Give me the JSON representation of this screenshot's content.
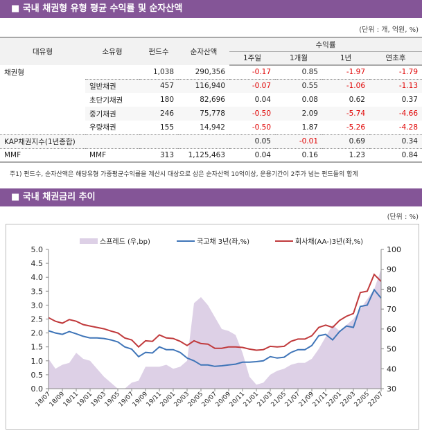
{
  "section1": {
    "title": "■ 국내 채권형 유형 평균 수익률 및 순자산액",
    "unit": "(단위 : 개, 억원, %)",
    "headers": {
      "major": "대유형",
      "minor": "소유형",
      "funds": "펀드수",
      "assets": "순자산액",
      "returns": "수익률",
      "w1": "1주일",
      "m1": "1개월",
      "y1": "1년",
      "ytd": "연초후"
    },
    "rows": [
      {
        "major": "채권형",
        "minor": "",
        "funds": "1,038",
        "assets": "290,356",
        "w1": "-0.17",
        "m1": "0.85",
        "y1": "-1.97",
        "ytd": "-1.79"
      },
      {
        "major": "",
        "minor": "일반채권",
        "funds": "457",
        "assets": "116,940",
        "w1": "-0.07",
        "m1": "0.55",
        "y1": "-1.06",
        "ytd": "-1.13"
      },
      {
        "major": "",
        "minor": "초단기채권",
        "funds": "180",
        "assets": "82,696",
        "w1": "0.04",
        "m1": "0.08",
        "y1": "0.62",
        "ytd": "0.37"
      },
      {
        "major": "",
        "minor": "중기채권",
        "funds": "246",
        "assets": "75,778",
        "w1": "-0.50",
        "m1": "2.09",
        "y1": "-5.74",
        "ytd": "-4.66"
      },
      {
        "major": "",
        "minor": "우량채권",
        "funds": "155",
        "assets": "14,942",
        "w1": "-0.50",
        "m1": "1.87",
        "y1": "-5.26",
        "ytd": "-4.28"
      },
      {
        "major": "KAP채권지수(1년종합)",
        "minor": "",
        "funds": "",
        "assets": "",
        "w1": "0.05",
        "m1": "-0.01",
        "y1": "0.69",
        "ytd": "0.34"
      },
      {
        "major": "MMF",
        "minor": "MMF",
        "funds": "313",
        "assets": "1,125,463",
        "w1": "0.04",
        "m1": "0.16",
        "y1": "1.23",
        "ytd": "0.84"
      }
    ],
    "note": "주1) 펀드수, 순자산액은 해당유형 가중평균수익률을 계산시 대상으로 삼은 순자산액 10억이상, 운용기간이 2주가 넘는 펀드들의 합계"
  },
  "section2": {
    "title": "■ 국내 채권금리 추이",
    "unit": "(단위 : %)"
  },
  "chart_data": {
    "type": "line",
    "x": [
      "18/07",
      "18/08",
      "18/09",
      "18/10",
      "18/11",
      "18/12",
      "19/01",
      "19/02",
      "19/03",
      "19/04",
      "19/05",
      "19/06",
      "19/07",
      "19/08",
      "19/09",
      "19/10",
      "19/11",
      "19/12",
      "20/01",
      "20/02",
      "20/03",
      "20/04",
      "20/05",
      "20/06",
      "20/07",
      "20/08",
      "20/09",
      "20/10",
      "20/11",
      "20/12",
      "21/01",
      "21/02",
      "21/03",
      "21/04",
      "21/05",
      "21/06",
      "21/07",
      "21/08",
      "21/09",
      "21/10",
      "21/11",
      "21/12",
      "22/01",
      "22/02",
      "22/03",
      "22/04",
      "22/05",
      "22/06",
      "22/07"
    ],
    "xticks": [
      "18/07",
      "18/09",
      "18/11",
      "19/01",
      "19/03",
      "19/05",
      "19/07",
      "19/09",
      "19/11",
      "20/01",
      "20/03",
      "20/05",
      "20/07",
      "20/09",
      "20/11",
      "21/01",
      "21/03",
      "21/05",
      "21/07",
      "21/09",
      "21/11",
      "22/01",
      "22/03",
      "22/05",
      "22/07"
    ],
    "ylim_left": [
      0,
      5
    ],
    "yticks_left": [
      "0.0",
      "0.5",
      "1.0",
      "1.5",
      "2.0",
      "2.5",
      "3.0",
      "3.5",
      "4.0",
      "4.5",
      "5.0"
    ],
    "ylim_right": [
      30,
      100
    ],
    "yticks_right": [
      "30",
      "40",
      "50",
      "60",
      "70",
      "80",
      "90",
      "100"
    ],
    "legend_position": "top",
    "grid": false,
    "series": [
      {
        "name": "스프레드 (우,bp)",
        "axis": "right",
        "type": "area",
        "color": "#ddd0e6",
        "values": [
          45,
          40,
          42,
          43,
          48,
          45,
          44,
          40,
          36,
          33,
          30,
          30,
          33,
          34,
          41,
          41,
          41,
          42,
          40,
          41,
          44,
          73,
          76,
          72,
          66,
          60,
          59,
          57,
          48,
          36,
          32,
          33,
          37,
          39,
          40,
          42,
          43,
          43,
          45,
          50,
          56,
          62,
          59,
          62,
          65,
          70,
          75,
          80,
          90
        ]
      },
      {
        "name": "국고채 3년(좌,%)",
        "axis": "left",
        "color": "#3f75b8",
        "values": [
          2.08,
          2.0,
          1.95,
          2.05,
          1.97,
          1.88,
          1.82,
          1.82,
          1.8,
          1.75,
          1.68,
          1.5,
          1.42,
          1.15,
          1.3,
          1.28,
          1.5,
          1.4,
          1.4,
          1.3,
          1.1,
          1.0,
          0.85,
          0.85,
          0.8,
          0.82,
          0.85,
          0.88,
          0.95,
          0.95,
          0.97,
          1.0,
          1.15,
          1.1,
          1.13,
          1.3,
          1.4,
          1.4,
          1.55,
          1.9,
          1.95,
          1.75,
          2.05,
          2.25,
          2.2,
          2.95,
          3.0,
          3.55,
          3.25
        ]
      },
      {
        "name": "회사채(AA-)3년(좌,%)",
        "axis": "left",
        "color": "#c0393b",
        "values": [
          2.55,
          2.42,
          2.35,
          2.48,
          2.42,
          2.3,
          2.25,
          2.2,
          2.15,
          2.07,
          2.0,
          1.82,
          1.75,
          1.5,
          1.72,
          1.7,
          1.93,
          1.82,
          1.8,
          1.7,
          1.55,
          1.72,
          1.62,
          1.6,
          1.45,
          1.45,
          1.5,
          1.5,
          1.48,
          1.42,
          1.38,
          1.4,
          1.52,
          1.5,
          1.52,
          1.7,
          1.78,
          1.78,
          1.9,
          2.2,
          2.28,
          2.2,
          2.45,
          2.6,
          2.7,
          3.45,
          3.5,
          4.1,
          3.85
        ]
      }
    ]
  }
}
